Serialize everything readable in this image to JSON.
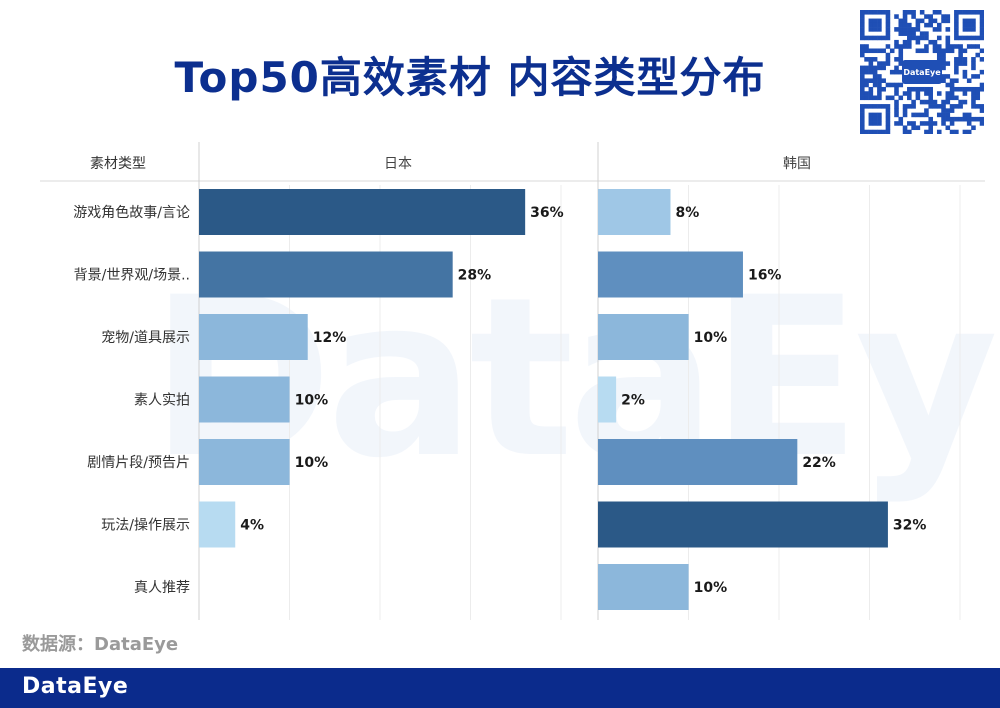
{
  "title": "Top50高效素材 内容类型分布",
  "watermark": "DataEye",
  "qr_badge": "DataEye",
  "source": "数据源：DataEye",
  "footer_logo": "DataEye",
  "chart_data": {
    "type": "bar",
    "orientation": "horizontal",
    "title": "Top50高效素材 内容类型分布",
    "category_header": "素材类型",
    "categories": [
      "游戏角色故事/言论",
      "背景/世界观/场景..",
      "宠物/道具展示",
      "素人实拍",
      "剧情片段/预告片",
      "玩法/操作展示",
      "真人推荐"
    ],
    "series": [
      {
        "name": "日本",
        "values": [
          36,
          28,
          12,
          10,
          10,
          4,
          null
        ],
        "labels": [
          "36%",
          "28%",
          "12%",
          "10%",
          "10%",
          "4%",
          ""
        ]
      },
      {
        "name": "韩国",
        "values": [
          8,
          16,
          10,
          2,
          22,
          32,
          10
        ],
        "labels": [
          "8%",
          "16%",
          "10%",
          "2%",
          "22%",
          "32%",
          "10%"
        ]
      }
    ],
    "unit": "%",
    "xlim": [
      0,
      40
    ],
    "grid": true,
    "colors": {
      "darkest": "#2b5987",
      "dark": "#4474a3",
      "medium": "#5f8fbf",
      "light": "#8cb7db",
      "lighter": "#9fc7e6",
      "lightest": "#b7dbf1"
    }
  }
}
